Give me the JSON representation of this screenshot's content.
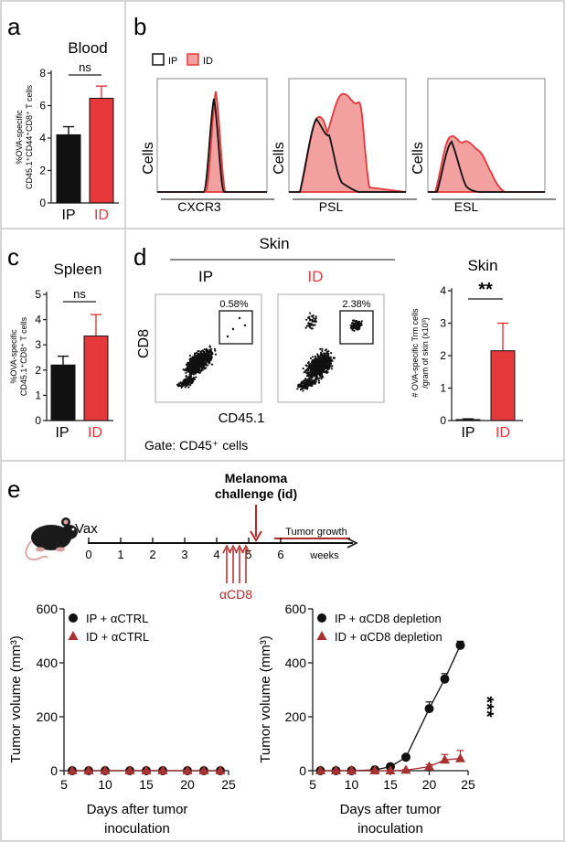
{
  "colors": {
    "ip": "#111111",
    "id": "#e4383b",
    "id_fill": "#f2a0a0",
    "idTri": "#a83232",
    "frame": "#c9c9c9",
    "axis": "#1a1a1a"
  },
  "panels": {
    "a": {
      "letter": "a",
      "title": "Blood",
      "ylabel1": "%OVA-specific",
      "ylabel2": "CD45.1⁺CD44⁺CD8⁺ T cells",
      "sig": "ns"
    },
    "b": {
      "letter": "b",
      "legend_ip": "IP",
      "legend_id": "ID",
      "ylabel": "Cells",
      "x1": "CXCR3",
      "x2": "PSL",
      "x3": "ESL"
    },
    "c": {
      "letter": "c",
      "title": "Spleen",
      "ylabel1": "%OVA-specific",
      "ylabel2": "CD45.1⁺CD8⁺ T cells",
      "sig": "ns"
    },
    "d": {
      "letter": "d",
      "skin_header": "Skin",
      "ip": "IP",
      "id": "ID",
      "gate1": "0.58%",
      "gate2": "2.38%",
      "ylabel": "CD8",
      "xlabel": "CD45.1",
      "gate_note": "Gate: CD45⁺ cells",
      "bar_title": "Skin",
      "bar_ylabel1": "# OVA-specific Trm cells",
      "bar_ylabel2": "/gram of skin (x10³)",
      "sig": "**"
    },
    "e": {
      "letter": "e",
      "vax": "Vax",
      "challenge1": "Melanoma",
      "challenge2": "challenge (id)",
      "tumor_growth": "Tumor growth",
      "weeks": "weeks",
      "acd8": "αCD8",
      "week_ticks": [
        "0",
        "1",
        "2",
        "3",
        "4",
        "5",
        "6"
      ],
      "ylabel": "Tumor volume (mm³)",
      "xlabel1": "Days after tumor",
      "xlabel2": "inoculation",
      "sig": "***"
    }
  },
  "chart_data": [
    {
      "id": "a",
      "type": "bar",
      "categories": [
        "IP",
        "ID"
      ],
      "values": [
        4.2,
        6.45
      ],
      "errors": [
        0.5,
        0.75
      ],
      "ylim": [
        0,
        8
      ],
      "yticks": [
        0,
        2,
        4,
        6,
        8
      ],
      "title": "Blood"
    },
    {
      "id": "c",
      "type": "bar",
      "categories": [
        "IP",
        "ID"
      ],
      "values": [
        2.2,
        3.35
      ],
      "errors": [
        0.35,
        0.85
      ],
      "ylim": [
        0,
        5
      ],
      "yticks": [
        0,
        1,
        2,
        3,
        4,
        5
      ],
      "title": "Spleen"
    },
    {
      "id": "d_bar",
      "type": "bar",
      "categories": [
        "IP",
        "ID"
      ],
      "values": [
        0.03,
        2.15
      ],
      "errors": [
        0.02,
        0.85
      ],
      "ylim": [
        0,
        4
      ],
      "yticks": [
        0,
        1,
        2,
        3,
        4
      ],
      "title": "Skin"
    },
    {
      "id": "e_left",
      "type": "line",
      "xlim": [
        5,
        25
      ],
      "ylim": [
        0,
        600
      ],
      "xticks": [
        5,
        10,
        15,
        20,
        25
      ],
      "yticks": [
        0,
        200,
        400,
        600
      ],
      "series": [
        {
          "name": "IP + αCTRL",
          "marker": "circle",
          "x": [
            6,
            8,
            10,
            13,
            15,
            17,
            20,
            22,
            24
          ],
          "y": [
            0,
            0,
            0,
            0,
            0,
            0,
            0,
            0,
            0
          ]
        },
        {
          "name": "ID + αCTRL",
          "marker": "triangle",
          "x": [
            6,
            8,
            10,
            13,
            15,
            17,
            20,
            22,
            24
          ],
          "y": [
            0,
            0,
            0,
            0,
            0,
            0,
            0,
            0,
            0
          ]
        }
      ]
    },
    {
      "id": "e_right",
      "type": "line",
      "xlim": [
        5,
        25
      ],
      "ylim": [
        0,
        600
      ],
      "xticks": [
        5,
        10,
        15,
        20,
        25
      ],
      "yticks": [
        0,
        200,
        400,
        600
      ],
      "series": [
        {
          "name": "IP + αCD8 depletion",
          "marker": "circle",
          "x": [
            6,
            8,
            10,
            13,
            15,
            17,
            20,
            22,
            24
          ],
          "y": [
            0,
            0,
            0,
            3,
            15,
            50,
            230,
            340,
            465
          ],
          "err": [
            0,
            0,
            0,
            2,
            5,
            8,
            25,
            20,
            15
          ]
        },
        {
          "name": "ID + αCD8 depletion",
          "marker": "triangle",
          "x": [
            6,
            8,
            10,
            13,
            15,
            17,
            20,
            22,
            24
          ],
          "y": [
            0,
            0,
            0,
            0,
            0,
            2,
            15,
            40,
            45
          ],
          "err": [
            0,
            0,
            0,
            0,
            0,
            2,
            8,
            20,
            30
          ]
        }
      ]
    }
  ]
}
